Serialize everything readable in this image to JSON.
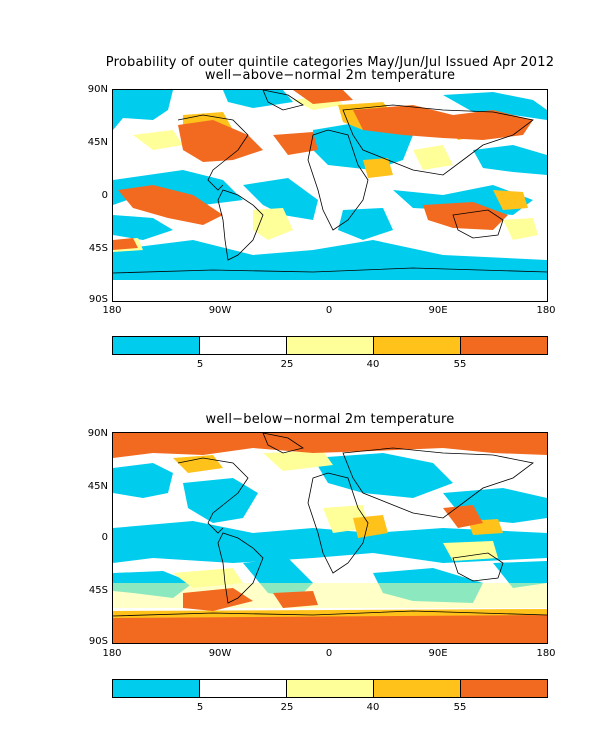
{
  "figure": {
    "main_title": "Probability of outer quintile categories May/Jun/Jul Issued Apr 2012",
    "panels": [
      {
        "subtitle": "well−above−normal 2m temperature"
      },
      {
        "subtitle": "well−below−normal 2m temperature"
      }
    ],
    "lat_ticks": [
      "90N",
      "45N",
      "0",
      "45S",
      "90S"
    ],
    "lon_ticks": [
      "180",
      "90W",
      "0",
      "90E",
      "180"
    ],
    "colorbar": {
      "labels": [
        "5",
        "25",
        "40",
        "55"
      ],
      "colors": [
        "#00ccee",
        "#ffffff",
        "#ffff99",
        "#ffc21a",
        "#f26a1f"
      ]
    }
  }
}
